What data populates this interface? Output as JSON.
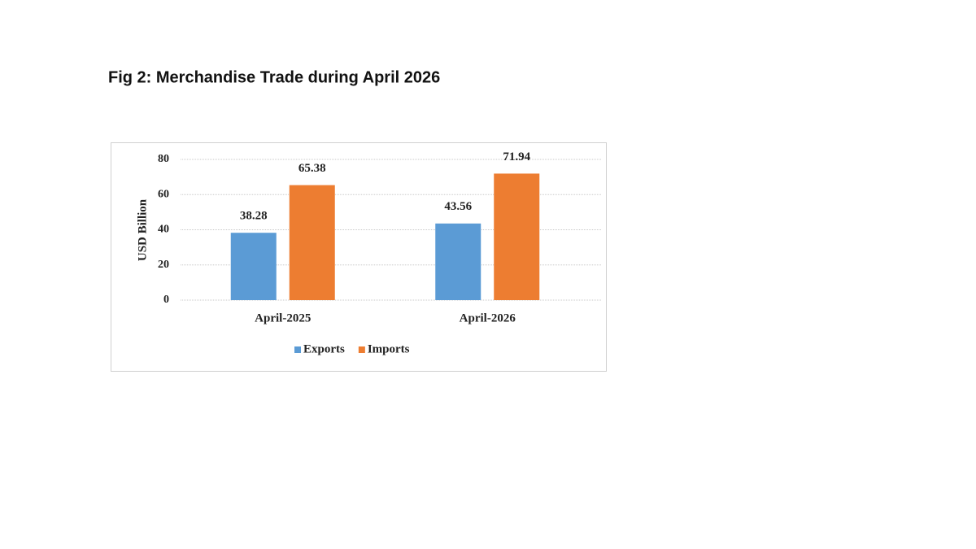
{
  "chart_data": {
    "type": "bar",
    "title": "Fig 2: Merchandise Trade during April 2026",
    "y_label": "USD Billion",
    "categories": [
      "April-2025",
      "April-2026"
    ],
    "series": [
      {
        "name": "Exports",
        "color": "#5b9bd5",
        "values": [
          38.28,
          43.56
        ]
      },
      {
        "name": "Imports",
        "color": "#ed7d31",
        "values": [
          65.38,
          71.94
        ]
      }
    ],
    "ylim": [
      0,
      80
    ],
    "yticks": [
      0,
      20,
      40,
      60,
      80
    ],
    "grid": true,
    "legend": "bottom",
    "data_labels": true
  }
}
